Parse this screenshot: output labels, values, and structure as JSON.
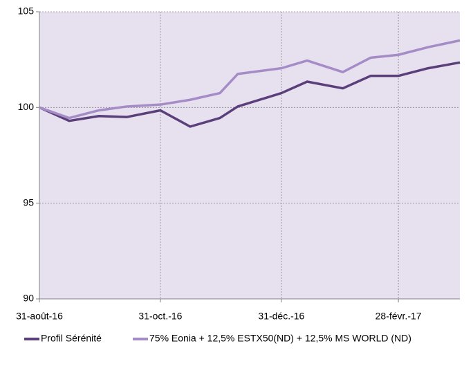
{
  "chart_data": {
    "type": "line",
    "x": [
      "2016-08-31",
      "2016-09-15",
      "2016-09-30",
      "2016-10-14",
      "2016-10-31",
      "2016-11-15",
      "2016-11-30",
      "2016-12-09",
      "2016-12-31",
      "2017-01-13",
      "2017-01-31",
      "2017-02-14",
      "2017-02-28",
      "2017-03-15",
      "2017-03-31"
    ],
    "series": [
      {
        "name": "Profil Sérénité",
        "color": "#5b3f7a",
        "values": [
          100,
          99.3,
          99.55,
          99.5,
          99.85,
          99.0,
          99.45,
          100.05,
          100.75,
          101.35,
          101.0,
          101.65,
          101.65,
          102.05,
          102.35
        ]
      },
      {
        "name": "75% Eonia + 12,5% ESTX50(ND) + 12,5% MS WORLD (ND)",
        "color": "#a58cc7",
        "values": [
          100,
          99.45,
          99.85,
          100.05,
          100.15,
          100.4,
          100.75,
          101.75,
          102.05,
          102.45,
          101.85,
          102.6,
          102.75,
          103.15,
          103.5
        ]
      }
    ],
    "xlim": [
      "2016-08-31",
      "2017-03-31"
    ],
    "xticks": [
      {
        "value": "2016-08-31",
        "label": "31-août-16"
      },
      {
        "value": "2016-10-31",
        "label": "31-oct.-16"
      },
      {
        "value": "2016-12-31",
        "label": "31-déc.-16"
      },
      {
        "value": "2017-02-28",
        "label": "28-févr.-17"
      }
    ],
    "ylim": [
      90,
      105
    ],
    "yticks": [
      90,
      95,
      100,
      105
    ],
    "grid": true,
    "legend": "bottom"
  }
}
